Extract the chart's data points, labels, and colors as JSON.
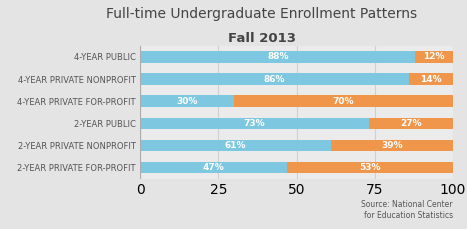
{
  "title_line1": "Full-time Undergraduate Enrollment Patterns",
  "title_line2": "Fall 2013",
  "categories": [
    "4-YEAR PUBLIC",
    "4-YEAR PRIVATE NONPROFIT",
    "4-YEAR PRIVATE FOR-PROFIT",
    "2-YEAR PUBLIC",
    "2-YEAR PRIVATE NONPROFIT",
    "2-YEAR PRIVATE FOR-PROFIT"
  ],
  "under25": [
    88,
    86,
    30,
    73,
    61,
    47
  ],
  "over25": [
    12,
    14,
    70,
    27,
    39,
    53
  ],
  "color_under25": "#7dc8e0",
  "color_over25": "#f0964a",
  "background_color": "#e4e4e4",
  "plot_bg_color": "#ebebeb",
  "grid_color": "#d0d0d0",
  "text_color": "#555555",
  "title_color": "#444444",
  "source_text": "Source: National Center\nfor Education Statistics"
}
